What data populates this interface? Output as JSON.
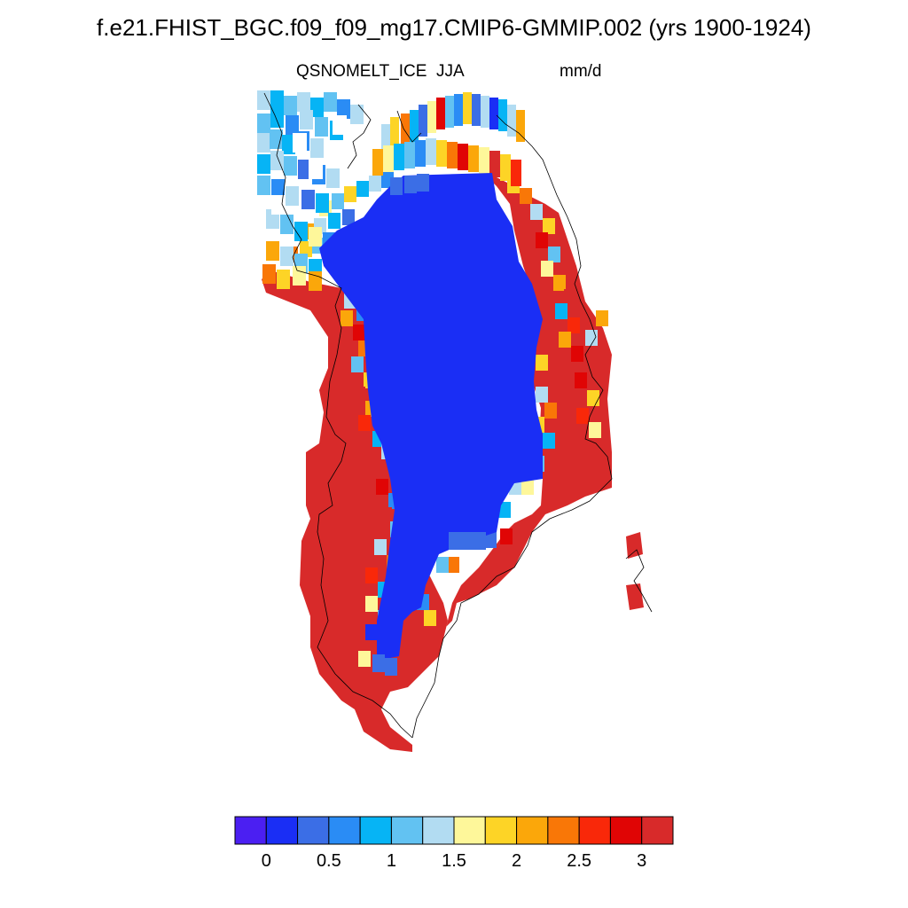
{
  "title": "f.e21.FHIST_BGC.f09_f09_mg17.CMIP6-GMMIP.002 (yrs 1900-1924)",
  "variable": "QSNOMELT_ICE",
  "season": "JJA",
  "units": "mm/d",
  "colorbar": {
    "colors": [
      "#4b1ff2",
      "#1a2ef5",
      "#3b6ee6",
      "#2a8cf5",
      "#06b4f5",
      "#62c2f2",
      "#b2dcf2",
      "#fef79a",
      "#fdd426",
      "#fba70a",
      "#f97707",
      "#f92809",
      "#e00505",
      "#d82a2a"
    ],
    "tick_labels": [
      "0",
      "0.5",
      "1",
      "1.5",
      "2",
      "2.5",
      "3"
    ]
  },
  "chart_data": {
    "type": "heatmap",
    "title": "f.e21.FHIST_BGC.f09_f09_mg17.CMIP6-GMMIP.002 (yrs 1900-1924)",
    "variable": "QSNOMELT_ICE",
    "season": "JJA",
    "units": "mm/d",
    "region": "Greenland",
    "levels": [
      0,
      0.25,
      0.5,
      0.75,
      1,
      1.25,
      1.5,
      1.75,
      2,
      2.25,
      2.5,
      2.75,
      3
    ],
    "value_range": [
      0,
      3
    ],
    "interior_value": "0.25-0.5",
    "coastal_value": ">3"
  }
}
